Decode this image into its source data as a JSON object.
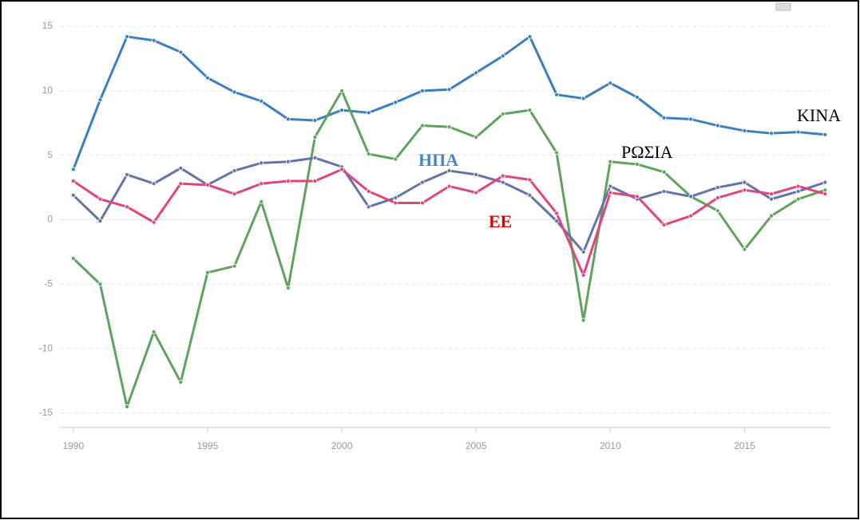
{
  "chart_data": {
    "type": "line",
    "x": [
      1990,
      1991,
      1992,
      1993,
      1994,
      1995,
      1996,
      1997,
      1998,
      1999,
      2000,
      2001,
      2002,
      2003,
      2004,
      2005,
      2006,
      2007,
      2008,
      2009,
      2010,
      2011,
      2012,
      2013,
      2014,
      2015,
      2016,
      2017,
      2018
    ],
    "series": [
      {
        "color": "#3a7fbf",
        "values": [
          3.9,
          9.3,
          14.2,
          13.9,
          13.0,
          11.0,
          9.9,
          9.2,
          7.8,
          7.7,
          8.5,
          8.3,
          9.1,
          10.0,
          10.1,
          11.4,
          12.7,
          14.2,
          9.7,
          9.4,
          10.6,
          9.5,
          7.9,
          7.8,
          7.3,
          6.9,
          6.7,
          6.8,
          6.6
        ]
      },
      {
        "color": "#5ea35e",
        "values": [
          -3.0,
          -5.0,
          -14.5,
          -8.7,
          -12.6,
          -4.1,
          -3.6,
          1.4,
          -5.3,
          6.4,
          10.0,
          5.1,
          4.7,
          7.3,
          7.2,
          6.4,
          8.2,
          8.5,
          5.2,
          -7.8,
          4.5,
          4.3,
          3.7,
          1.8,
          0.7,
          -2.3,
          0.3,
          1.6,
          2.3
        ]
      },
      {
        "color": "#6574a8",
        "values": [
          1.9,
          -0.1,
          3.5,
          2.8,
          4.0,
          2.7,
          3.8,
          4.4,
          4.5,
          4.8,
          4.1,
          1.0,
          1.7,
          2.9,
          3.8,
          3.5,
          2.9,
          1.9,
          -0.1,
          -2.5,
          2.6,
          1.6,
          2.2,
          1.8,
          2.5,
          2.9,
          1.6,
          2.2,
          2.9
        ]
      },
      {
        "color": "#e0457b",
        "values": [
          3.0,
          1.6,
          1.0,
          -0.2,
          2.8,
          2.7,
          2.0,
          2.8,
          3.0,
          3.0,
          3.9,
          2.2,
          1.3,
          1.3,
          2.6,
          2.1,
          3.4,
          3.1,
          0.5,
          -4.3,
          2.1,
          1.8,
          -0.4,
          0.3,
          1.7,
          2.3,
          2.0,
          2.6,
          2.0
        ]
      }
    ],
    "annotations": [
      {
        "text": "ΚΙΝΑ",
        "color": "#000000"
      },
      {
        "text": "ΡΩΣΙΑ",
        "color": "#000000"
      },
      {
        "text": "ΗΠΑ",
        "color": "#4a86c6"
      },
      {
        "text": "ΕΕ",
        "color": "#e00000"
      }
    ],
    "xlim": [
      1989.5,
      2018.2
    ],
    "xticks": [
      1990,
      1995,
      2000,
      2005,
      2010,
      2015
    ],
    "ylim": [
      -15,
      15
    ],
    "yticks": [
      15,
      10,
      5,
      0,
      -5,
      -10,
      -15
    ],
    "grid": true
  }
}
